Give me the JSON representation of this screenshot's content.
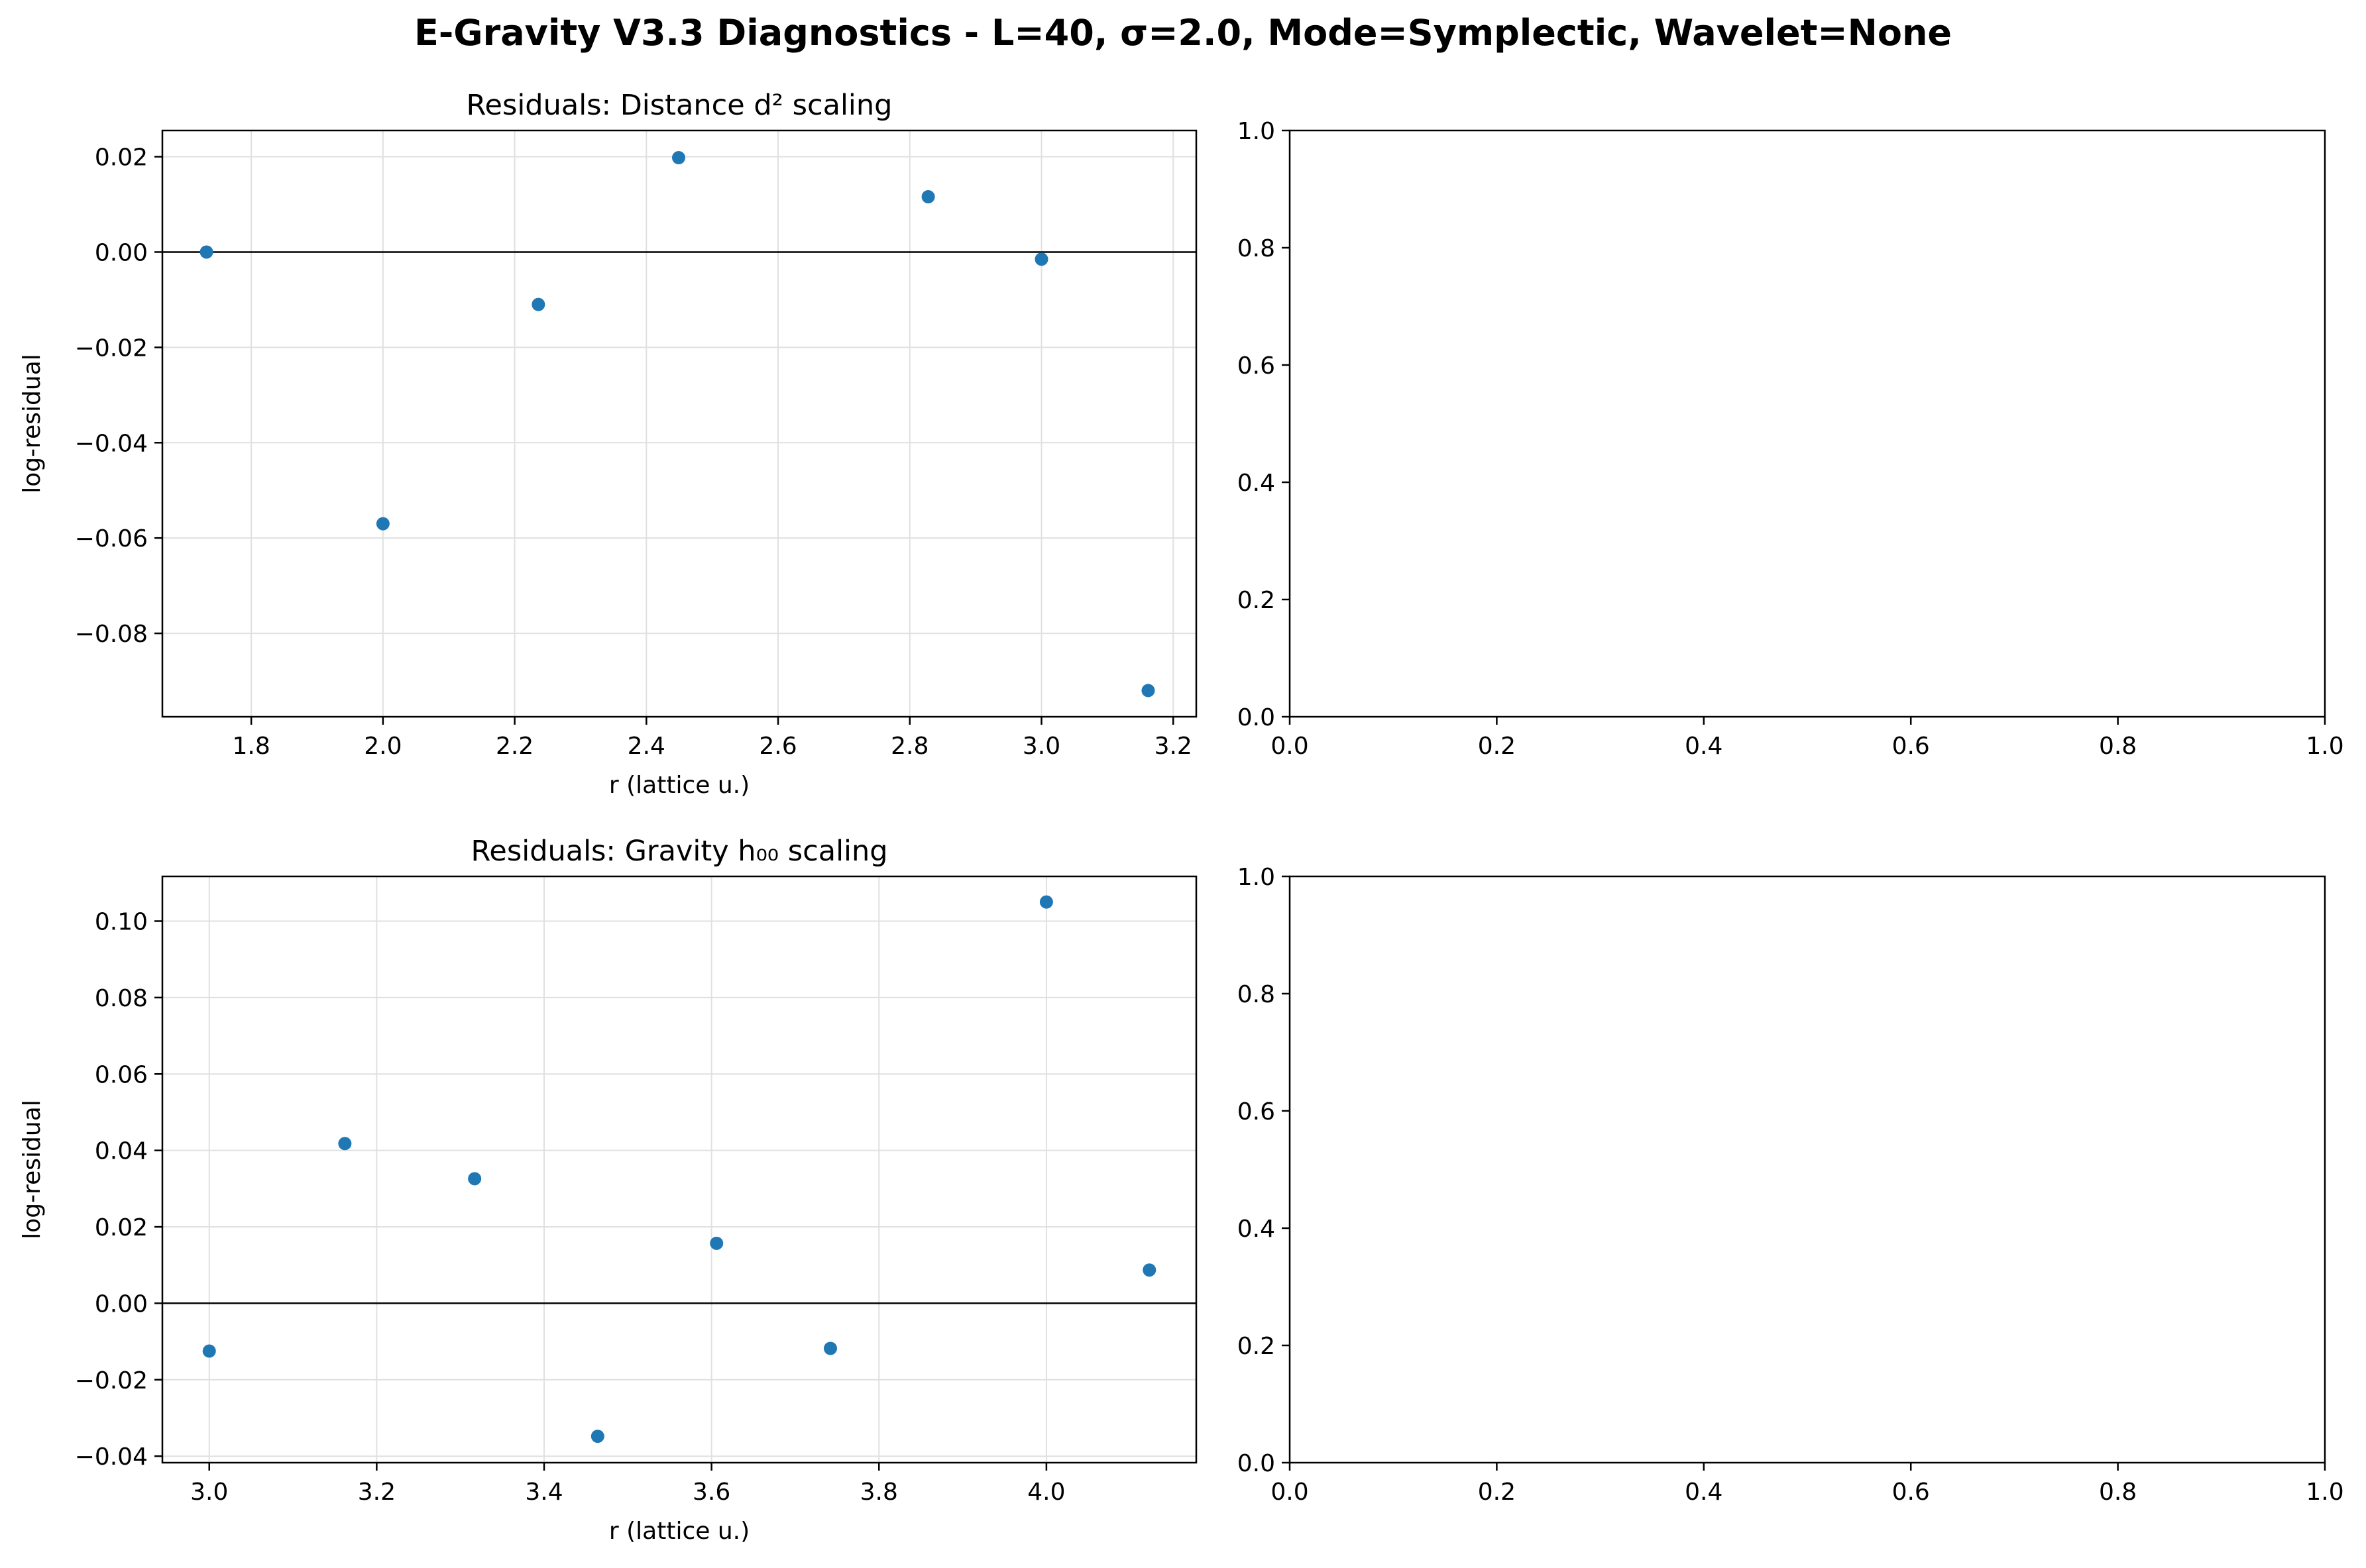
{
  "figure": {
    "title": "E-Gravity V3.3 Diagnostics - L=40, σ=2.0, Mode=Symplectic, Wavelet=None"
  },
  "colors": {
    "points": "#1f77b4",
    "zero_line": "#000000",
    "grid": "#e0e0e0"
  },
  "chart_data": [
    {
      "type": "scatter",
      "title": "Residuals: Distance d² scaling",
      "xlabel": "r (lattice u.)",
      "ylabel": "log-residual",
      "xlim": [
        1.665,
        3.235
      ],
      "ylim": [
        -0.0975,
        0.0255
      ],
      "grid": true,
      "zero_line": true,
      "xticks": [
        "1.8",
        "2.0",
        "2.2",
        "2.4",
        "2.6",
        "2.8",
        "3.0",
        "3.2"
      ],
      "yticks": [
        "0.02",
        "0.00",
        "−0.02",
        "−0.04",
        "−0.06",
        "−0.08"
      ],
      "x": [
        1.732,
        2.0,
        2.236,
        2.449,
        2.828,
        3.0,
        3.162
      ],
      "y": [
        0.0,
        -0.057,
        -0.011,
        0.0198,
        0.0116,
        -0.0015,
        -0.092
      ]
    },
    {
      "type": "empty",
      "xlim": [
        0,
        1
      ],
      "ylim": [
        0,
        1
      ],
      "xticks": [
        "0.0",
        "0.2",
        "0.4",
        "0.6",
        "0.8",
        "1.0"
      ],
      "yticks": [
        "0.0",
        "0.2",
        "0.4",
        "0.6",
        "0.8",
        "1.0"
      ]
    },
    {
      "type": "scatter",
      "title": "Residuals: Gravity h₀₀ scaling",
      "xlabel": "r (lattice u.)",
      "ylabel": "log-residual",
      "xlim": [
        2.944,
        4.179
      ],
      "ylim": [
        -0.0417,
        0.1117
      ],
      "grid": true,
      "zero_line": true,
      "xticks": [
        "3.0",
        "3.2",
        "3.4",
        "3.6",
        "3.8",
        "4.0"
      ],
      "yticks": [
        "0.10",
        "0.08",
        "0.06",
        "0.04",
        "0.02",
        "0.00",
        "−0.02",
        "−0.04"
      ],
      "x": [
        3.0,
        3.162,
        3.317,
        3.464,
        3.606,
        3.742,
        4.0,
        4.123
      ],
      "y": [
        -0.0125,
        0.0418,
        0.0326,
        -0.0348,
        0.0157,
        -0.0118,
        0.105,
        0.0087
      ]
    },
    {
      "type": "empty",
      "xlim": [
        0,
        1
      ],
      "ylim": [
        0,
        1
      ],
      "xticks": [
        "0.0",
        "0.2",
        "0.4",
        "0.6",
        "0.8",
        "1.0"
      ],
      "yticks": [
        "0.0",
        "0.2",
        "0.4",
        "0.6",
        "0.8",
        "1.0"
      ]
    }
  ]
}
